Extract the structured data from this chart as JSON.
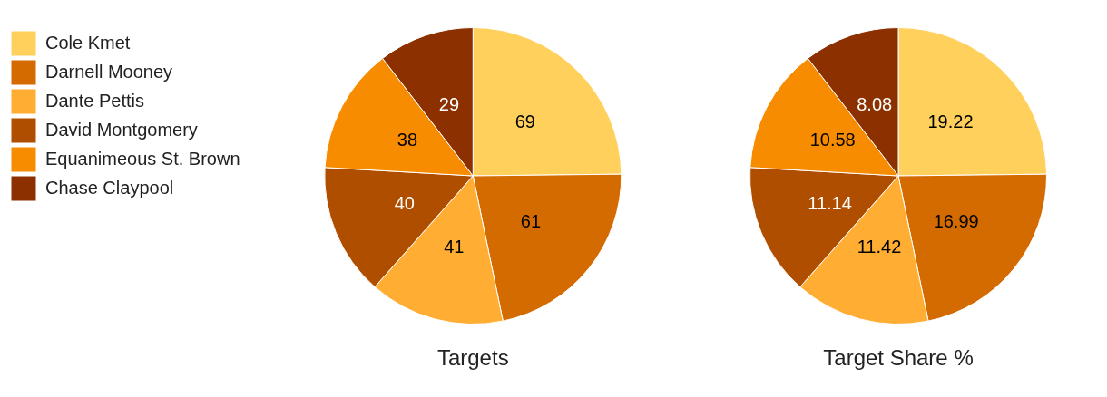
{
  "chart_data": [
    {
      "type": "pie",
      "title": "Targets",
      "categories": [
        "Cole Kmet",
        "Darnell Mooney",
        "Dante Pettis",
        "David Montgomery",
        "Equanimeous St. Brown",
        "Chase Claypool"
      ],
      "values": [
        69,
        61,
        41,
        40,
        38,
        29
      ],
      "colors": [
        "#ffd05c",
        "#d46b00",
        "#ffad33",
        "#b04e00",
        "#f88c00",
        "#8c3000"
      ],
      "data_labels": true,
      "legend": "top left"
    },
    {
      "type": "pie",
      "title": "Target Share %",
      "values": [
        19.22,
        16.99,
        11.42,
        11.14,
        10.58,
        8.08
      ],
      "colors": [
        "#ffd05c",
        "#d46b00",
        "#ffad33",
        "#b04e00",
        "#f88c00",
        "#8c3000"
      ],
      "data_labels": true,
      "legend": false
    }
  ]
}
